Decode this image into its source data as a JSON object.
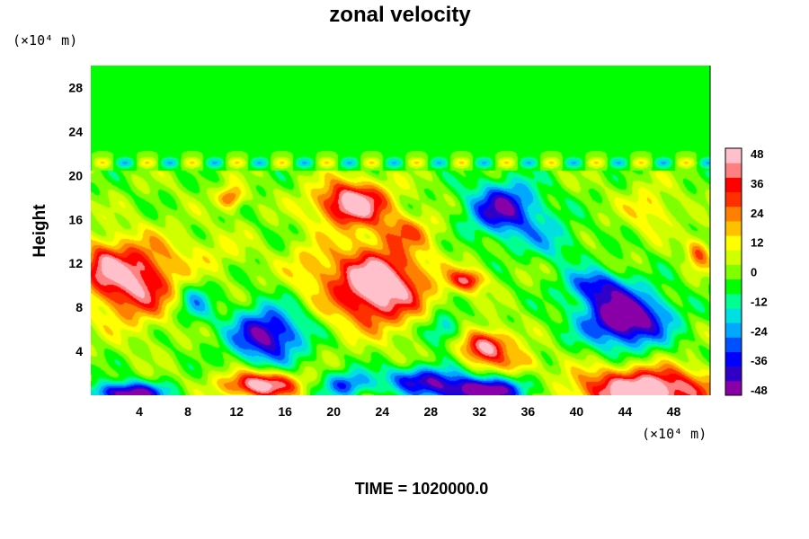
{
  "chart_data": {
    "type": "heatmap",
    "title": "zonal velocity",
    "ylabel": "Height",
    "x_unit_label": "(×10⁴ m)",
    "y_unit_label": "(×10⁴ m)",
    "footer": "TIME = 1020000.0",
    "xlim": [
      0,
      51
    ],
    "ylim": [
      0,
      30
    ],
    "x_ticks": [
      "4",
      "8",
      "12",
      "16",
      "20",
      "24",
      "28",
      "32",
      "36",
      "40",
      "44",
      "48"
    ],
    "y_ticks": [
      "4",
      "8",
      "12",
      "16",
      "20",
      "24",
      "28"
    ],
    "colorbar": {
      "range": [
        -48,
        48
      ],
      "ticks": [
        "48",
        "36",
        "24",
        "12",
        "0",
        "-12",
        "-24",
        "-36",
        "-48"
      ],
      "colors": [
        "#8a00a8",
        "#3000c8",
        "#0000ff",
        "#0050ff",
        "#00a8ff",
        "#00e0e0",
        "#00ff90",
        "#00ff00",
        "#80ff00",
        "#d0ff00",
        "#ffff00",
        "#ffc000",
        "#ff8000",
        "#ff3000",
        "#ff0000",
        "#ff8080",
        "#ffc0cc"
      ]
    },
    "background_value": 0,
    "features": [
      {
        "x": 3.5,
        "y": 10.5,
        "sx": 3.5,
        "sy": 3.5,
        "v": 45
      },
      {
        "x": 0.8,
        "y": 12.0,
        "sx": 1.5,
        "sy": 2.0,
        "v": 20
      },
      {
        "x": 23.5,
        "y": 10.0,
        "sx": 4.0,
        "sy": 3.5,
        "v": 55
      },
      {
        "x": 21.5,
        "y": 17.5,
        "sx": 3.0,
        "sy": 2.0,
        "v": 50
      },
      {
        "x": 26.0,
        "y": 15.0,
        "sx": 2.5,
        "sy": 1.5,
        "v": 18
      },
      {
        "x": 31.0,
        "y": 10.5,
        "sx": 1.5,
        "sy": 1.0,
        "v": 35
      },
      {
        "x": 32.5,
        "y": 4.5,
        "sx": 2.0,
        "sy": 1.5,
        "v": 45
      },
      {
        "x": 11.5,
        "y": 18.0,
        "sx": 1.0,
        "sy": 1.0,
        "v": 30
      },
      {
        "x": 14.0,
        "y": 1.0,
        "sx": 3.0,
        "sy": 1.2,
        "v": 50
      },
      {
        "x": 45.5,
        "y": 0.5,
        "sx": 5.5,
        "sy": 2.0,
        "v": 55
      },
      {
        "x": 35.5,
        "y": 3.0,
        "sx": 1.5,
        "sy": 1.0,
        "v": 20
      },
      {
        "x": 14.5,
        "y": 5.5,
        "sx": 3.0,
        "sy": 2.5,
        "v": -45
      },
      {
        "x": 34.0,
        "y": 17.0,
        "sx": 3.0,
        "sy": 2.5,
        "v": -42
      },
      {
        "x": 44.0,
        "y": 7.0,
        "sx": 3.5,
        "sy": 2.5,
        "v": -55
      },
      {
        "x": 41.5,
        "y": 10.0,
        "sx": 2.5,
        "sy": 1.5,
        "v": -30
      },
      {
        "x": 3.0,
        "y": 0.2,
        "sx": 3.0,
        "sy": 1.0,
        "v": -50
      },
      {
        "x": 32.0,
        "y": 0.4,
        "sx": 4.0,
        "sy": 1.2,
        "v": -52
      },
      {
        "x": 27.0,
        "y": 1.5,
        "sx": 3.0,
        "sy": 1.2,
        "v": -35
      },
      {
        "x": 21.0,
        "y": 1.0,
        "sx": 2.0,
        "sy": 1.2,
        "v": -30
      },
      {
        "x": 8.5,
        "y": 8.5,
        "sx": 1.5,
        "sy": 2.0,
        "v": -20
      },
      {
        "x": 29.0,
        "y": 6.0,
        "sx": 1.5,
        "sy": 1.5,
        "v": -22
      },
      {
        "x": 38.0,
        "y": 14.0,
        "sx": 2.5,
        "sy": 2.0,
        "v": -15
      },
      {
        "x": 50.0,
        "y": 13.0,
        "sx": 1.0,
        "sy": 1.5,
        "v": 25
      },
      {
        "x": 46.0,
        "y": 17.0,
        "sx": 2.0,
        "sy": 2.0,
        "v": 15
      },
      {
        "x": 10.0,
        "y": 13.0,
        "sx": 3.0,
        "sy": 2.0,
        "v": 8
      },
      {
        "x": 18.0,
        "y": 12.0,
        "sx": 2.0,
        "sy": 2.0,
        "v": 12
      }
    ]
  }
}
